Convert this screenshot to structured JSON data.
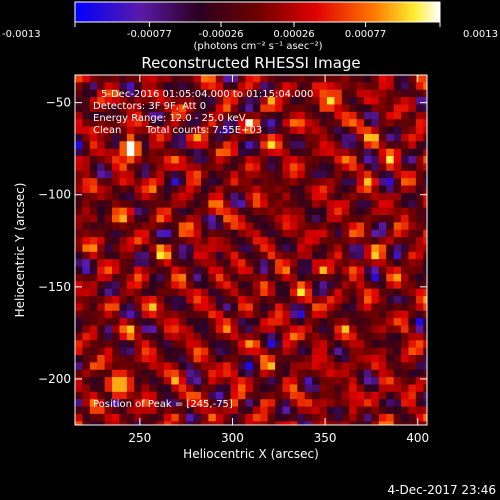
{
  "colorbar": {
    "ticks": [
      "-0.0013",
      "-0.00077",
      "-0.00026",
      "0.00026",
      "0.00077",
      "0.0013"
    ],
    "tick_values": [
      -0.0013,
      -0.00077,
      -0.00026,
      0.00026,
      0.00077,
      0.0013
    ],
    "range": [
      -0.0013,
      0.0013
    ]
  },
  "chart_data": {
    "type": "heatmap",
    "title": "Reconstructed RHESSI Image",
    "xlabel": "Heliocentric X (arcsec)",
    "ylabel": "Heliocentric Y (arcsec)",
    "xlim": [
      215,
      405
    ],
    "ylim": [
      -225,
      -35
    ],
    "x_ticks": [
      250,
      300,
      350,
      400
    ],
    "y_ticks": [
      -50,
      -100,
      -150,
      -200
    ],
    "pixel_size_arcsec": 4,
    "peak": [
      245,
      -75
    ],
    "bright_spots": [
      {
        "x": 245,
        "y": -75,
        "v": 0.0013
      },
      {
        "x": 352,
        "y": -48,
        "v": 0.0011
      },
      {
        "x": 239,
        "y": -203,
        "v": 0.00095
      }
    ],
    "colorscale": "rainbow-hot (blue-purple-black-red-orange-yellow-white)",
    "annotations": {
      "time_range": "5-Dec-2016 01:05:04.000 to 01:15:04.000",
      "detectors": "Detectors: 3F 9F, Att 0",
      "energy": "Energy Range: 12.0 - 25.0 keV",
      "algorithm": "Clean",
      "counts": "Total counts: 7.55E+03",
      "peak_label": "Position of Peak = [245,-75]"
    },
    "units_label": "(photons cm⁻² s⁻¹ asec⁻²)"
  },
  "footer": {
    "timestamp": "4-Dec-2017 23:46"
  }
}
